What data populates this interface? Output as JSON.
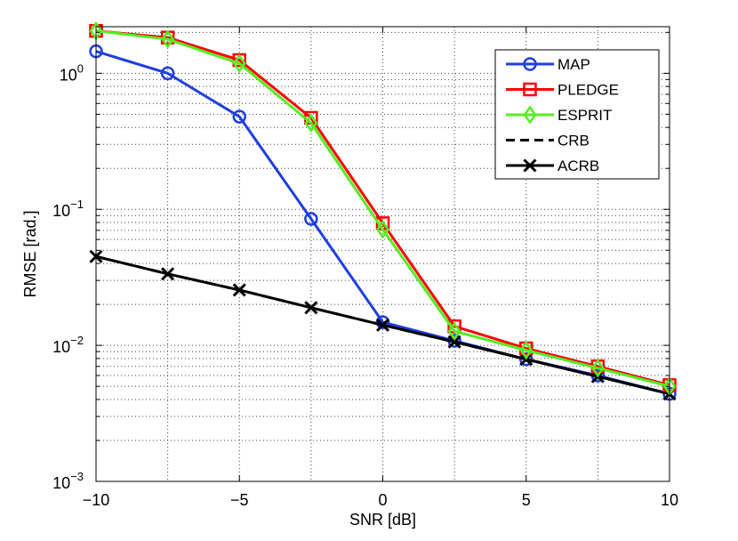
{
  "chart_data": {
    "type": "line",
    "title": "",
    "xlabel": "SNR [dB]",
    "ylabel": "RMSE [rad.]",
    "xlim": [
      -10,
      10
    ],
    "ylim": [
      0.001,
      2.2
    ],
    "yscale": "log",
    "grid": true,
    "legend_position": "top-right",
    "x_ticks": [
      -10,
      -5,
      0,
      5,
      10
    ],
    "x_tick_labels": [
      "−10",
      "−5",
      "0",
      "5",
      "10"
    ],
    "y_ticks": [
      0.001,
      0.01,
      0.1,
      1
    ],
    "y_tick_labels": [
      {
        "base": "10",
        "exp": "−3"
      },
      {
        "base": "10",
        "exp": "−2"
      },
      {
        "base": "10",
        "exp": "−1"
      },
      {
        "base": "10",
        "exp": "0"
      }
    ],
    "x": [
      -10,
      -7.5,
      -5,
      -2.5,
      0,
      2.5,
      5,
      7.5,
      10
    ],
    "series": [
      {
        "name": "MAP",
        "color": "#1f3fe0",
        "marker": "circle",
        "dash": "solid",
        "values": [
          1.45,
          1.0,
          0.48,
          0.085,
          0.0148,
          0.0108,
          0.0079,
          0.006,
          0.0044
        ]
      },
      {
        "name": "PLEDGE",
        "color": "#ff0000",
        "marker": "square",
        "dash": "solid",
        "values": [
          2.05,
          1.83,
          1.25,
          0.47,
          0.079,
          0.0138,
          0.0095,
          0.007,
          0.0051
        ]
      },
      {
        "name": "ESPRIT",
        "color": "#55ee22",
        "marker": "diamond",
        "dash": "solid",
        "values": [
          2.05,
          1.78,
          1.18,
          0.43,
          0.071,
          0.0127,
          0.0092,
          0.0068,
          0.005
        ]
      },
      {
        "name": "CRB",
        "color": "#000000",
        "marker": "none",
        "dash": "dashed",
        "values": [
          0.045,
          0.0335,
          0.0255,
          0.0189,
          0.0141,
          0.0106,
          0.0079,
          0.0059,
          0.0044
        ]
      },
      {
        "name": "ACRB",
        "color": "#000000",
        "marker": "x",
        "dash": "solid",
        "values": [
          0.045,
          0.0335,
          0.0255,
          0.0189,
          0.0141,
          0.0106,
          0.0079,
          0.0059,
          0.0044
        ]
      }
    ]
  }
}
